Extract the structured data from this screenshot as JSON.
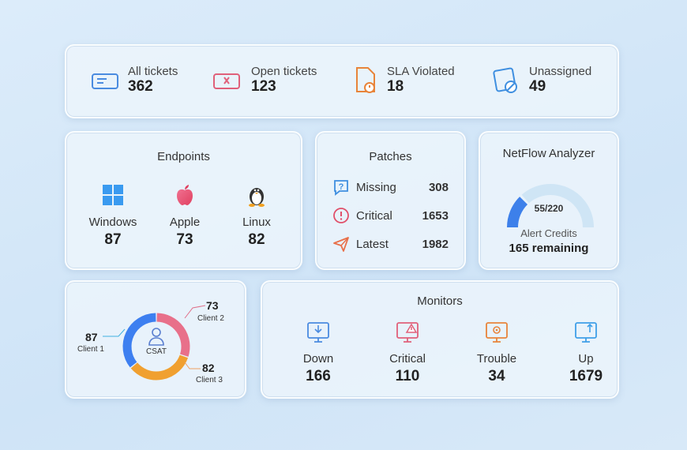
{
  "tickets": [
    {
      "label": "All tickets",
      "value": "362",
      "icon": "ticket-icon",
      "color": "#4a8be0"
    },
    {
      "label": "Open tickets",
      "value": "123",
      "icon": "open-ticket-icon",
      "color": "#e0607a"
    },
    {
      "label": "SLA Violated",
      "value": "18",
      "icon": "sla-violation-icon",
      "color": "#e8843a"
    },
    {
      "label": "Unassigned",
      "value": "49",
      "icon": "unassigned-icon",
      "color": "#3f8fe0"
    }
  ],
  "endpoints": {
    "title": "Endpoints",
    "items": [
      {
        "label": "Windows",
        "value": "87",
        "icon": "windows-icon"
      },
      {
        "label": "Apple",
        "value": "73",
        "icon": "apple-icon"
      },
      {
        "label": "Linux",
        "value": "82",
        "icon": "linux-icon"
      }
    ]
  },
  "patches": {
    "title": "Patches",
    "items": [
      {
        "label": "Missing",
        "value": "308",
        "icon": "question-icon"
      },
      {
        "label": "Critical",
        "value": "1653",
        "icon": "alert-icon"
      },
      {
        "label": "Latest",
        "value": "1982",
        "icon": "send-icon"
      }
    ]
  },
  "netflow": {
    "title": "NetFlow Analyzer",
    "gauge_text": "55/220",
    "used": 55,
    "total": 220,
    "caption": "Alert Credits",
    "remaining": "165 remaining"
  },
  "csat": {
    "center_label": "CSAT",
    "clients": [
      {
        "label": "Client 1",
        "value": "87",
        "color": "#3d7ff0"
      },
      {
        "label": "Client 2",
        "value": "73",
        "color": "#e8708a"
      },
      {
        "label": "Client 3",
        "value": "82",
        "color": "#f0a030"
      }
    ]
  },
  "monitors": {
    "title": "Monitors",
    "items": [
      {
        "label": "Down",
        "value": "166",
        "icon": "monitor-down-icon",
        "color": "#4a8be0"
      },
      {
        "label": "Critical",
        "value": "110",
        "icon": "monitor-critical-icon",
        "color": "#e0607a"
      },
      {
        "label": "Trouble",
        "value": "34",
        "icon": "monitor-trouble-icon",
        "color": "#e8843a"
      },
      {
        "label": "Up",
        "value": "1679",
        "icon": "monitor-up-icon",
        "color": "#3f9fe8"
      }
    ]
  }
}
